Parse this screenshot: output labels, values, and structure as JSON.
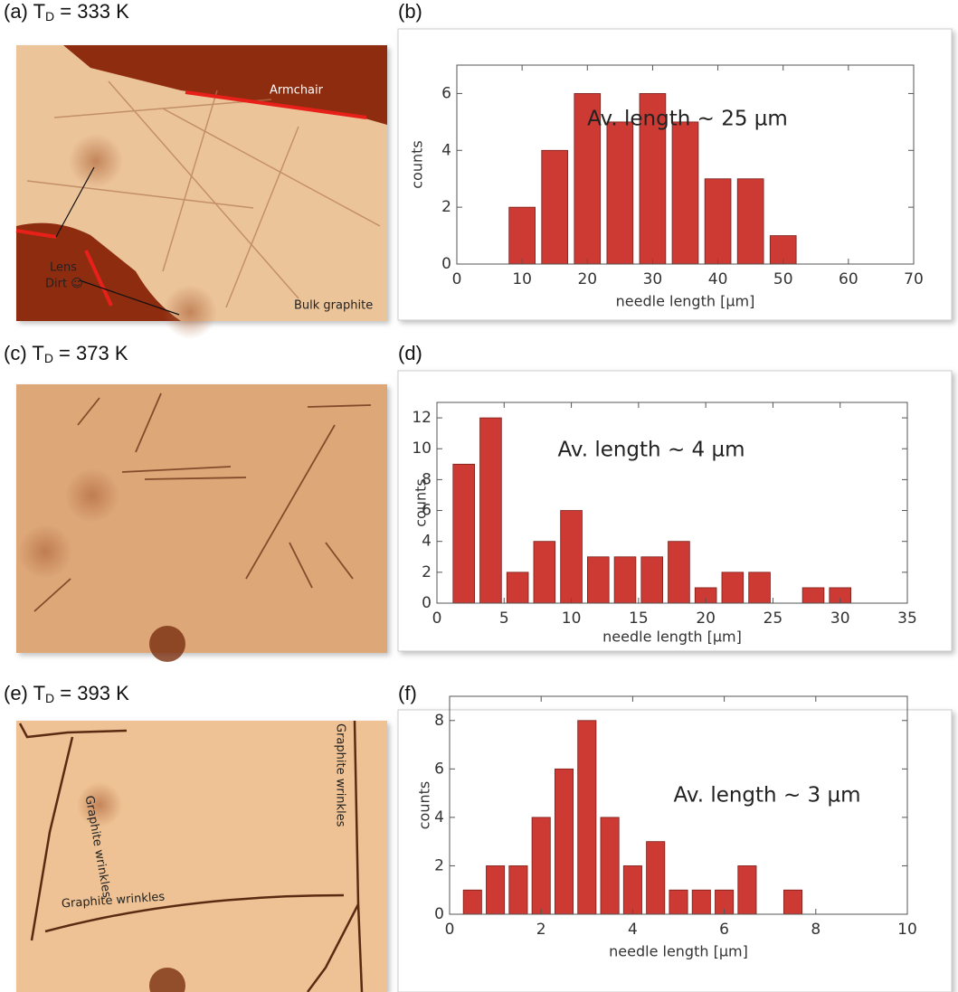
{
  "panels": [
    {
      "prefix": "(a) T",
      "sub": "D",
      "suffix": " = 333 K",
      "notes": [
        "Armchair",
        "Lens",
        "Dirt ☺",
        "Bulk graphite"
      ]
    },
    {
      "label": "(b)"
    },
    {
      "prefix": "(c) T",
      "sub": "D",
      "suffix": " = 373 K"
    },
    {
      "label": "(d)"
    },
    {
      "prefix": "(e) T",
      "sub": "D",
      "suffix": " = 393 K",
      "notes": [
        "Graphite wrinkles",
        "Graphite wrinkles",
        "Graphite wrinkles"
      ]
    },
    {
      "label": "(f)"
    }
  ],
  "chart_data": [
    {
      "type": "histogram",
      "annotation": "Av. length ~ 25 µm",
      "xlabel": "needle length [µm]",
      "ylabel": "counts",
      "color": "#cc3a33",
      "bins": [
        7.5,
        12.5,
        17.5,
        22.5,
        27.5,
        32.5,
        37.5,
        42.5,
        47.5,
        52.5
      ],
      "values": [
        2,
        4,
        6,
        5,
        6,
        5,
        3,
        3,
        1
      ],
      "xlim": [
        0,
        70
      ],
      "xticks": [
        0,
        10,
        20,
        30,
        40,
        50,
        60,
        70
      ],
      "ylim": [
        0,
        7
      ],
      "yticks": [
        0,
        2,
        4,
        6
      ]
    },
    {
      "type": "histogram",
      "annotation": "Av. length ~ 4 µm",
      "xlabel": "needle length [µm]",
      "ylabel": "counts",
      "color": "#cc3a33",
      "bins": [
        1,
        3,
        5,
        7,
        9,
        11,
        13,
        15,
        17,
        19,
        21,
        23,
        25,
        27,
        29,
        31
      ],
      "values": [
        9,
        12,
        2,
        4,
        6,
        3,
        3,
        3,
        4,
        1,
        2,
        2,
        0,
        1,
        1
      ],
      "xlim": [
        0,
        35
      ],
      "xticks": [
        0,
        5,
        10,
        15,
        20,
        25,
        30,
        35
      ],
      "ylim": [
        0,
        13
      ],
      "yticks": [
        0,
        2,
        4,
        6,
        8,
        10,
        12
      ]
    },
    {
      "type": "histogram",
      "annotation": "Av. length ~ 3 µm",
      "xlabel": "needle length [µm]",
      "ylabel": "counts",
      "color": "#cc3a33",
      "bins": [
        0.25,
        0.75,
        1.25,
        1.75,
        2.25,
        2.75,
        3.25,
        3.75,
        4.25,
        4.75,
        5.25,
        5.75,
        6.25,
        6.75,
        7.25,
        7.75
      ],
      "values": [
        1,
        2,
        2,
        4,
        6,
        8,
        4,
        2,
        3,
        1,
        1,
        1,
        2,
        0,
        1
      ],
      "xlim": [
        0,
        10
      ],
      "xticks": [
        0,
        2,
        4,
        6,
        8,
        10
      ],
      "ylim": [
        0,
        9
      ],
      "yticks": [
        0,
        2,
        4,
        6,
        8
      ]
    }
  ]
}
